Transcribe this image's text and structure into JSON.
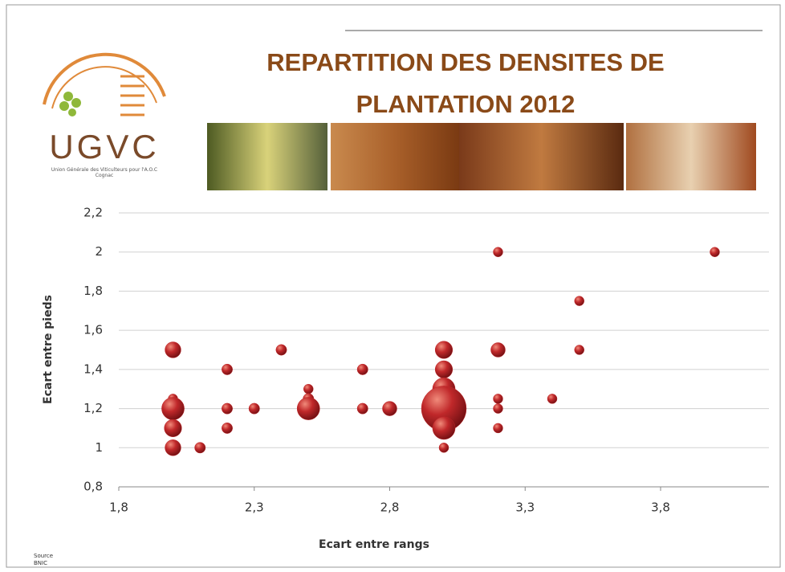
{
  "logo": {
    "name": "UGVC",
    "subtitle": "Union Générale des Viticulteurs pour l'A.O.C Cognac"
  },
  "source": {
    "label": "Source",
    "name": "BNIC"
  },
  "chart_data": {
    "type": "bubble",
    "title": "REPARTITION DES DENSITES DE PLANTATION 2012",
    "x_label": "Ecart entre rangs",
    "y_label": "Ecart entre pieds",
    "xlim": [
      1.8,
      4.2
    ],
    "xticks": [
      {
        "value": 1.8,
        "label": "1,8"
      },
      {
        "value": 2.3,
        "label": "2,3"
      },
      {
        "value": 2.8,
        "label": "2,8"
      },
      {
        "value": 3.3,
        "label": "3,3"
      },
      {
        "value": 3.8,
        "label": "3,8"
      }
    ],
    "ylim": [
      0.8,
      2.2
    ],
    "yticks": [
      {
        "value": 0.8,
        "label": "0,8"
      },
      {
        "value": 1,
        "label": "1"
      },
      {
        "value": 1.2,
        "label": "1,2"
      },
      {
        "value": 1.4,
        "label": "1,4"
      },
      {
        "value": 1.6,
        "label": "1,6"
      },
      {
        "value": 1.8,
        "label": "1,8"
      },
      {
        "value": 2,
        "label": "2"
      },
      {
        "value": 2.2,
        "label": "2,2"
      }
    ],
    "grid": true,
    "color": "#c0282a",
    "x": [
      2.0,
      2.0,
      2.0,
      2.0,
      2.0,
      2.1,
      2.2,
      2.2,
      2.2,
      2.3,
      2.4,
      2.5,
      2.5,
      2.5,
      2.7,
      2.7,
      2.8,
      3.0,
      3.0,
      3.0,
      3.0,
      3.0,
      3.0,
      3.0,
      3.2,
      3.2,
      3.2,
      3.2,
      3.2,
      3.4,
      3.5,
      3.5,
      4.0
    ],
    "values": [
      1.5,
      1.25,
      1.2,
      1.1,
      1.0,
      1.0,
      1.4,
      1.2,
      1.1,
      1.2,
      1.5,
      1.3,
      1.25,
      1.2,
      1.4,
      1.2,
      1.2,
      1.5,
      1.4,
      1.3,
      1.25,
      1.2,
      1.1,
      1.0,
      2.0,
      1.5,
      1.25,
      1.2,
      1.1,
      1.25,
      1.75,
      1.5,
      2.0
    ],
    "sizes": [
      11,
      4,
      22,
      13,
      11,
      5,
      5,
      5,
      5,
      5,
      5,
      4,
      5,
      22,
      5,
      5,
      9,
      13,
      13,
      22,
      28,
      87,
      22,
      4,
      4,
      9,
      4,
      4,
      4,
      4,
      4,
      4,
      4
    ]
  }
}
